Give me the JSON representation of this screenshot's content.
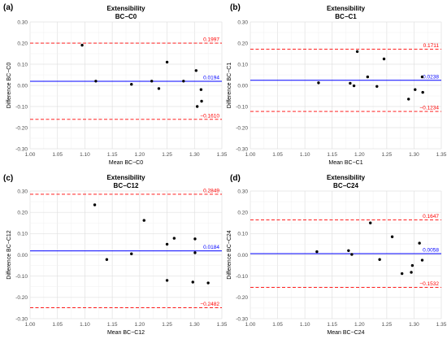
{
  "chart_data": [
    {
      "type": "scatter",
      "panel_label": "(a)",
      "title_line1": "Extensibility",
      "title_line2": "BC−C0",
      "xlabel": "Mean BC−C0",
      "ylabel": "Difference BC−C0",
      "xlim": [
        1.0,
        1.35
      ],
      "ylim": [
        -0.3,
        0.3
      ],
      "xticks": [
        "1.00",
        "1.05",
        "1.10",
        "1.15",
        "1.20",
        "1.25",
        "1.30",
        "1.35"
      ],
      "yticks": [
        "-0.30",
        "-0.20",
        "-0.10",
        "0.00",
        "0.10",
        "0.20",
        "0.30"
      ],
      "grid": true,
      "mean_line": {
        "value": 0.0194,
        "label": "0.0194",
        "color": "#0000ff"
      },
      "upper_loa": {
        "value": 0.1997,
        "label": "0.1997",
        "color": "#ff0000"
      },
      "lower_loa": {
        "value": -0.161,
        "label": "−0.1610",
        "color": "#ff0000"
      },
      "points": [
        {
          "x": 1.095,
          "y": 0.19
        },
        {
          "x": 1.12,
          "y": 0.02
        },
        {
          "x": 1.185,
          "y": 0.005
        },
        {
          "x": 1.222,
          "y": 0.02
        },
        {
          "x": 1.235,
          "y": -0.015
        },
        {
          "x": 1.25,
          "y": 0.11
        },
        {
          "x": 1.28,
          "y": 0.02
        },
        {
          "x": 1.303,
          "y": 0.07
        },
        {
          "x": 1.312,
          "y": -0.02
        },
        {
          "x": 1.313,
          "y": -0.075
        },
        {
          "x": 1.305,
          "y": -0.1
        }
      ]
    },
    {
      "type": "scatter",
      "panel_label": "(b)",
      "title_line1": "Extensibility",
      "title_line2": "BC−C1",
      "xlabel": "Mean BC−C1",
      "ylabel": "Difference BC−C1",
      "xlim": [
        1.0,
        1.35
      ],
      "ylim": [
        -0.3,
        0.3
      ],
      "xticks": [
        "1.00",
        "1.05",
        "1.10",
        "1.15",
        "1.20",
        "1.25",
        "1.30",
        "1.35"
      ],
      "yticks": [
        "-0.30",
        "-0.20",
        "-0.10",
        "0.00",
        "0.10",
        "0.20",
        "0.30"
      ],
      "grid": true,
      "mean_line": {
        "value": 0.0238,
        "label": "0.0238",
        "color": "#0000ff"
      },
      "upper_loa": {
        "value": 0.1711,
        "label": "0.1711",
        "color": "#ff0000"
      },
      "lower_loa": {
        "value": -0.1234,
        "label": "−0.1234",
        "color": "#ff0000"
      },
      "points": [
        {
          "x": 1.125,
          "y": 0.012
        },
        {
          "x": 1.183,
          "y": 0.01
        },
        {
          "x": 1.19,
          "y": -0.002
        },
        {
          "x": 1.196,
          "y": 0.16
        },
        {
          "x": 1.215,
          "y": 0.04
        },
        {
          "x": 1.232,
          "y": -0.005
        },
        {
          "x": 1.245,
          "y": 0.125
        },
        {
          "x": 1.29,
          "y": -0.065
        },
        {
          "x": 1.302,
          "y": -0.02
        },
        {
          "x": 1.315,
          "y": 0.04
        },
        {
          "x": 1.316,
          "y": -0.033
        }
      ]
    },
    {
      "type": "scatter",
      "panel_label": "(c)",
      "title_line1": "Extensibility",
      "title_line2": "BC−C12",
      "xlabel": "Mean BC−C12",
      "ylabel": "Difference BC−C12",
      "xlim": [
        1.0,
        1.35
      ],
      "ylim": [
        -0.3,
        0.3
      ],
      "xticks": [
        "1.00",
        "1.05",
        "1.10",
        "1.15",
        "1.20",
        "1.25",
        "1.30",
        "1.35"
      ],
      "yticks": [
        "-0.30",
        "-0.20",
        "-0.10",
        "0.00",
        "0.10",
        "0.20",
        "0.30"
      ],
      "grid": true,
      "mean_line": {
        "value": 0.0184,
        "label": "0.0184",
        "color": "#0000ff"
      },
      "upper_loa": {
        "value": 0.2849,
        "label": "0.2849",
        "color": "#ff0000"
      },
      "lower_loa": {
        "value": -0.2482,
        "label": "−0.2482",
        "color": "#ff0000"
      },
      "points": [
        {
          "x": 1.118,
          "y": 0.235
        },
        {
          "x": 1.14,
          "y": -0.022
        },
        {
          "x": 1.185,
          "y": 0.005
        },
        {
          "x": 1.208,
          "y": 0.162
        },
        {
          "x": 1.25,
          "y": 0.05
        },
        {
          "x": 1.263,
          "y": 0.078
        },
        {
          "x": 1.25,
          "y": -0.12
        },
        {
          "x": 1.297,
          "y": -0.128
        },
        {
          "x": 1.301,
          "y": 0.075
        },
        {
          "x": 1.301,
          "y": 0.01
        },
        {
          "x": 1.325,
          "y": -0.132
        }
      ]
    },
    {
      "type": "scatter",
      "panel_label": "(d)",
      "title_line1": "Extensibility",
      "title_line2": "BC−C24",
      "xlabel": "Mean BC−C24",
      "ylabel": "Difference BC−C24",
      "xlim": [
        1.0,
        1.35
      ],
      "ylim": [
        -0.3,
        0.3
      ],
      "xticks": [
        "1.00",
        "1.05",
        "1.10",
        "1.15",
        "1.20",
        "1.25",
        "1.30",
        "1.35"
      ],
      "yticks": [
        "-0.30",
        "-0.20",
        "-0.10",
        "0.00",
        "0.10",
        "0.20",
        "0.30"
      ],
      "grid": true,
      "mean_line": {
        "value": 0.0058,
        "label": "0.0058",
        "color": "#0000ff"
      },
      "upper_loa": {
        "value": 0.1647,
        "label": "0.1647",
        "color": "#ff0000"
      },
      "lower_loa": {
        "value": -0.1532,
        "label": "−0.1532",
        "color": "#ff0000"
      },
      "points": [
        {
          "x": 1.122,
          "y": 0.015
        },
        {
          "x": 1.18,
          "y": 0.02
        },
        {
          "x": 1.186,
          "y": 0.002
        },
        {
          "x": 1.22,
          "y": 0.15
        },
        {
          "x": 1.237,
          "y": -0.022
        },
        {
          "x": 1.26,
          "y": 0.085
        },
        {
          "x": 1.278,
          "y": -0.088
        },
        {
          "x": 1.295,
          "y": -0.082
        },
        {
          "x": 1.297,
          "y": -0.05
        },
        {
          "x": 1.31,
          "y": 0.055
        },
        {
          "x": 1.315,
          "y": -0.025
        }
      ]
    }
  ]
}
